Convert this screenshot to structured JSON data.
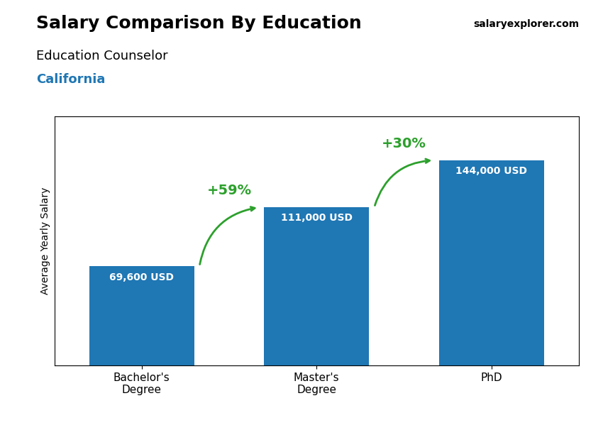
{
  "chart_data": {
    "type": "bar",
    "title": "Salary Comparison By Education",
    "subtitle": "Education Counselor",
    "location": "California",
    "watermark": "salaryexplorer.com",
    "y_label": "Average Yearly Salary",
    "categories": [
      "Bachelor's\nDegree",
      "Master's\nDegree",
      "PhD"
    ],
    "values": [
      69600,
      111000,
      144000
    ],
    "value_labels": [
      "69,600 USD",
      "111,000 USD",
      "144,000 USD"
    ],
    "data_labels": true,
    "annotations": [
      "+59%",
      "+30%"
    ],
    "ylim": [
      0,
      175000
    ],
    "tick_labels": "x",
    "grid": false
  }
}
